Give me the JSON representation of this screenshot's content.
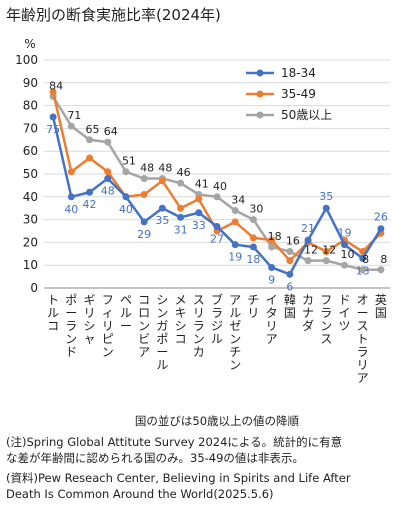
{
  "chart_data": {
    "type": "line",
    "title": "年齢別の断食実施比率(2024年)",
    "ylabel": "%",
    "xlabel": "国の並びは50歳以上の値の降順",
    "ylim": [
      0,
      100
    ],
    "yticks": [
      0,
      10,
      20,
      30,
      40,
      50,
      60,
      70,
      80,
      90,
      100
    ],
    "grid": true,
    "legend": "top-right",
    "categories": [
      "トルコ",
      "ポーランド",
      "ギリシャ",
      "フィリピン",
      "ペルー",
      "コロンビア",
      "シンガポール",
      "メキシコ",
      "スリランカ",
      "ブラジル",
      "アルゼンチン",
      "チリ",
      "イタリア",
      "韓国",
      "カナダ",
      "フランス",
      "ドイツ",
      "オーストラリア",
      "英国"
    ],
    "series": [
      {
        "name": "18-34",
        "color": "#4472c4",
        "values": [
          75,
          40,
          42,
          48,
          40,
          29,
          35,
          31,
          33,
          27,
          19,
          18,
          9,
          6,
          21,
          35,
          19,
          13,
          26
        ],
        "labels_shown": [
          75,
          40,
          42,
          48,
          40,
          29,
          35,
          31,
          33,
          27,
          19,
          18,
          9,
          6,
          21,
          35,
          19,
          13,
          26
        ]
      },
      {
        "name": "35-49",
        "color": "#ed7d31",
        "values": [
          86,
          51,
          57,
          51,
          40,
          41,
          47,
          35,
          39,
          25,
          29,
          22,
          21,
          12,
          20,
          16,
          21,
          16,
          24
        ],
        "labels_shown": []
      },
      {
        "name": "50歳以上",
        "color": "#a5a5a5",
        "values": [
          84,
          71,
          65,
          64,
          51,
          48,
          48,
          46,
          41,
          40,
          34,
          30,
          18,
          16,
          12,
          12,
          10,
          8,
          8
        ],
        "labels_shown": [
          84,
          71,
          65,
          64,
          51,
          48,
          48,
          46,
          41,
          40,
          34,
          30,
          18,
          16,
          12,
          12,
          10,
          8,
          8
        ]
      }
    ]
  },
  "notes": [
    "(注)Spring Global Attitute Survey 2024による。統計的に有意",
    "な差が年齢間に認められる国のみ。35-49の値は非表示。",
    "(資料)Pew Reseach Center, Believing in Spirits and Life After",
    "Death Is Common Around the World(2025.5.6)"
  ]
}
